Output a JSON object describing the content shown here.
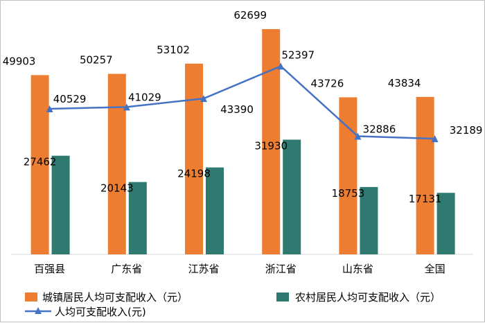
{
  "chart_data": {
    "type": "bar",
    "categories": [
      "百强县",
      "广东省",
      "江苏省",
      "浙江省",
      "山东省",
      "全国"
    ],
    "series": [
      {
        "name": "城镇居民人均可支配收入（元）",
        "kind": "bar",
        "color": "#ED7D31",
        "values": [
          49903,
          50257,
          53102,
          62699,
          43726,
          43834
        ]
      },
      {
        "name": "农村居民人均可支配收入（元）",
        "kind": "bar",
        "color": "#2E7A70",
        "values": [
          27462,
          20143,
          24198,
          31930,
          18753,
          17131
        ]
      },
      {
        "name": "人均可支配收入(元)",
        "kind": "line",
        "color": "#4472C4",
        "values": [
          40529,
          41029,
          43390,
          52397,
          32886,
          32189
        ]
      }
    ],
    "title": "",
    "xlabel": "",
    "ylabel": "",
    "ylim": [
      0,
      70000
    ],
    "grid": false,
    "legend_position": "bottom"
  }
}
